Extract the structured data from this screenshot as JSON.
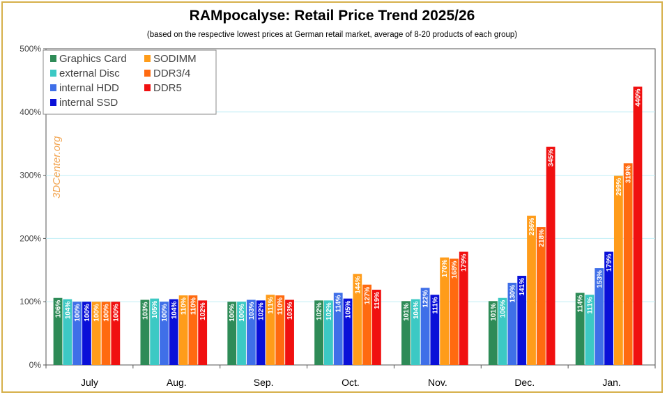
{
  "chart_data": {
    "type": "bar",
    "title": "RAMpocalyse: Retail Price Trend 2025/26",
    "subtitle": "(based on the respective lowest prices at German retail market, average of 8-20 products of each group)",
    "watermark": "3DCenter.org",
    "categories": [
      "July",
      "Aug.",
      "Sep.",
      "Oct.",
      "Nov.",
      "Dec.",
      "Jan."
    ],
    "yticks": [
      "0%",
      "100%",
      "200%",
      "300%",
      "400%",
      "500%"
    ],
    "ylim": [
      0,
      500
    ],
    "legend_position": "top-left",
    "series": [
      {
        "name": "Graphics Card",
        "color": "#2e8b57",
        "values": [
          106,
          103,
          100,
          102,
          101,
          101,
          114
        ]
      },
      {
        "name": "external Disc",
        "color": "#3cc9c4",
        "values": [
          104,
          105,
          100,
          102,
          104,
          106,
          111
        ]
      },
      {
        "name": "internal HDD",
        "color": "#3f6fe8",
        "values": [
          100,
          100,
          103,
          114,
          122,
          130,
          153
        ]
      },
      {
        "name": "internal SSD",
        "color": "#0a10d8",
        "values": [
          100,
          104,
          102,
          105,
          111,
          141,
          179
        ]
      },
      {
        "name": "SODIMM",
        "color": "#ff9c1a",
        "values": [
          100,
          110,
          111,
          144,
          170,
          236,
          299
        ]
      },
      {
        "name": "DDR3/4",
        "color": "#ff6a10",
        "values": [
          100,
          110,
          110,
          127,
          168,
          218,
          319
        ]
      },
      {
        "name": "DDR5",
        "color": "#f01010",
        "values": [
          100,
          102,
          103,
          119,
          179,
          345,
          440
        ]
      }
    ]
  }
}
